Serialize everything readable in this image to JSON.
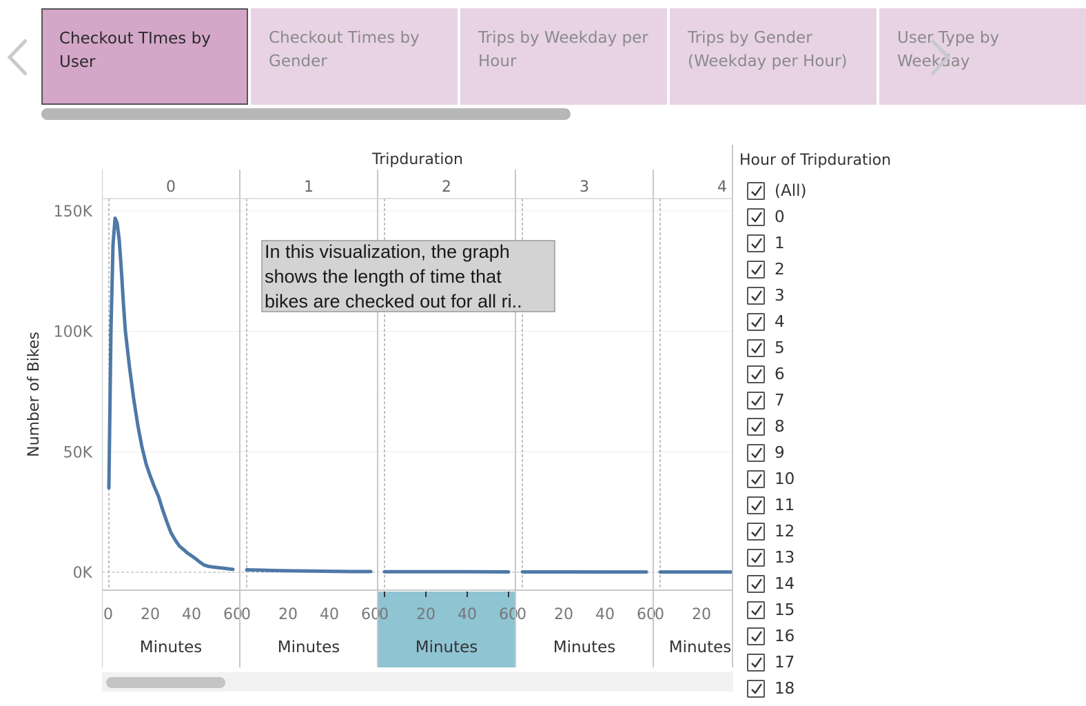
{
  "story": {
    "tabs": [
      {
        "label": "Checkout TImes by User",
        "active": true
      },
      {
        "label": "Checkout Times by Gender",
        "active": false
      },
      {
        "label": "Trips by Weekday per Hour",
        "active": false
      },
      {
        "label": "Trips by Gender (Weekday per Hour)",
        "active": false
      },
      {
        "label": "User Type by Weekday",
        "active": false
      }
    ],
    "icons": {
      "prev": "chevron-left-icon",
      "next": "chevron-right-icon"
    }
  },
  "filter": {
    "title": "Hour of Tripduration",
    "items": [
      "(All)",
      "0",
      "1",
      "2",
      "3",
      "4",
      "5",
      "6",
      "7",
      "8",
      "9",
      "10",
      "11",
      "12",
      "13",
      "14",
      "15",
      "16",
      "17",
      "18"
    ],
    "checked": true
  },
  "chart_data": {
    "type": "line",
    "column_header_title": "Tripduration",
    "panes": [
      "0",
      "1",
      "2",
      "3",
      "4"
    ],
    "highlighted_pane": "2",
    "ylabel": "Number of Bikes",
    "xlabel": "Minutes",
    "ylim": [
      0,
      160000
    ],
    "y_ticks": [
      {
        "value": 0,
        "label": "0K"
      },
      {
        "value": 50000,
        "label": "50K"
      },
      {
        "value": 100000,
        "label": "100K"
      },
      {
        "value": 150000,
        "label": "150K"
      }
    ],
    "x_ticks": [
      0,
      20,
      40,
      60
    ],
    "color": "#4e79a7",
    "series": [
      {
        "pane": "0",
        "x": [
          0,
          1,
          2,
          3,
          4,
          5,
          6,
          7,
          8,
          10,
          12,
          14,
          16,
          18,
          20,
          22,
          24,
          26,
          28,
          30,
          32,
          34,
          36,
          38,
          40,
          42,
          44,
          46,
          48,
          50,
          52,
          54,
          56,
          58,
          60
        ],
        "y": [
          35000,
          100000,
          136000,
          147000,
          145000,
          138000,
          126000,
          112000,
          100000,
          85000,
          72000,
          61000,
          52000,
          45000,
          40000,
          35500,
          31500,
          26000,
          21000,
          16500,
          13500,
          11000,
          9500,
          8000,
          6800,
          5600,
          4200,
          3000,
          2500,
          2200,
          2000,
          1800,
          1600,
          1400,
          1200
        ]
      },
      {
        "pane": "1",
        "x": [
          0,
          10,
          20,
          30,
          40,
          50,
          60
        ],
        "y": [
          1000,
          800,
          600,
          500,
          400,
          300,
          300
        ]
      },
      {
        "pane": "2",
        "x": [
          0,
          20,
          40,
          60
        ],
        "y": [
          200,
          200,
          200,
          150
        ]
      },
      {
        "pane": "3",
        "x": [
          0,
          20,
          40,
          60
        ],
        "y": [
          150,
          150,
          120,
          120
        ]
      },
      {
        "pane": "4",
        "x": [
          0,
          20,
          40,
          60
        ],
        "y": [
          120,
          120,
          100,
          100
        ]
      }
    ],
    "annotation": {
      "text_lines": [
        "In this visualization, the graph",
        "shows the length of time that",
        "bikes are checked out for all ri.."
      ]
    }
  }
}
